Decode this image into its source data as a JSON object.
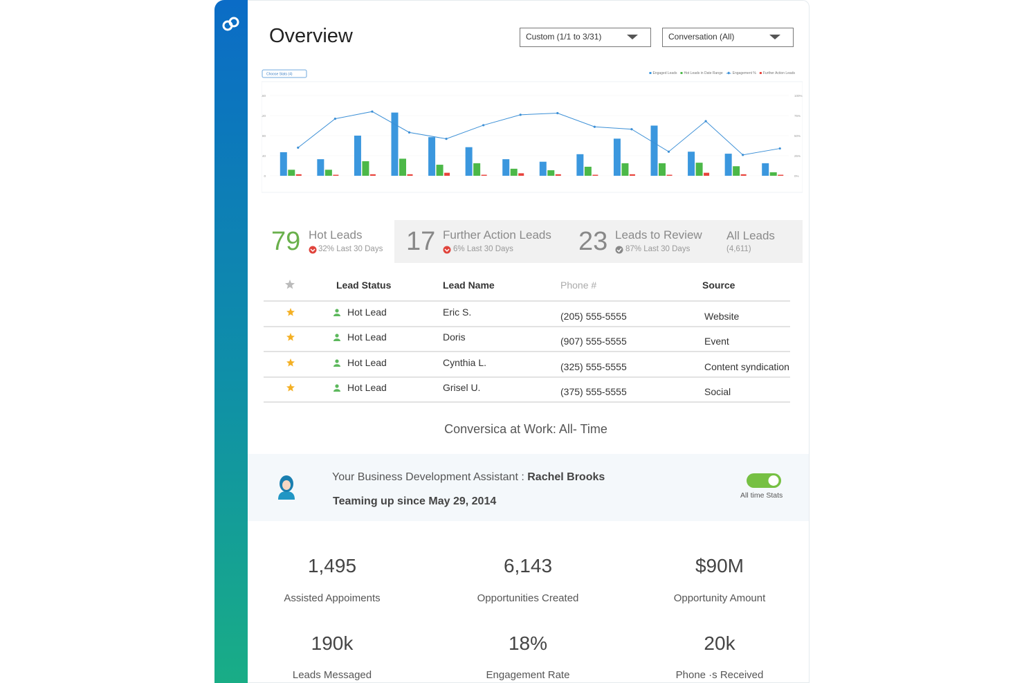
{
  "header": {
    "title": "Overview"
  },
  "filters": [
    "Custom (1/1 to 3/31)",
    "Conversation (All)"
  ],
  "chart_data": {
    "type": "bar",
    "button": "Choose Stats (4)",
    "categories": [
      null,
      null,
      null,
      null,
      null,
      null,
      null,
      null,
      null,
      null,
      null,
      null,
      null,
      null
    ],
    "series": [
      {
        "name": "Engaged Leads",
        "color": "#3b97de",
        "values": [
          47,
          33,
          80,
          126,
          77,
          57,
          33,
          28,
          43,
          74,
          100,
          48,
          44,
          25
        ]
      },
      {
        "name": "Hot Leads in Date Range",
        "color": "#4cb848",
        "values": [
          12,
          12,
          29,
          34,
          22,
          25,
          14,
          11,
          18,
          25,
          25,
          26,
          19,
          7
        ]
      },
      {
        "name": "Engagement %",
        "color": "#3b8fd6",
        "type": "line",
        "axis": "y2",
        "values": [
          35,
          71,
          80,
          54,
          46,
          63,
          76,
          78,
          61,
          58,
          30,
          68,
          26,
          34
        ]
      },
      {
        "name": "Further Action Leads",
        "color": "#e8433c",
        "values": [
          3,
          2,
          3,
          3,
          6,
          2,
          5,
          3,
          2,
          3,
          2,
          6,
          3,
          2
        ]
      }
    ],
    "ylim": [
      0,
      160
    ],
    "yticks": [
      0,
      40,
      80,
      120,
      160
    ],
    "y2lim": [
      0,
      100
    ],
    "y2ticks": [
      {
        "value": 0,
        "label": "0%"
      },
      {
        "value": 25,
        "label": "25%"
      },
      {
        "value": 50,
        "label": "50%"
      },
      {
        "value": 75,
        "label": "75%"
      },
      {
        "value": 100,
        "label": "100%"
      }
    ],
    "grid": true
  },
  "lead_tabs": [
    {
      "count": "79",
      "label": "Hot Leads",
      "change": "32% Last 30 Days"
    },
    {
      "count": "17",
      "label": "Further Action Leads",
      "change": "6% Last 30 Days"
    },
    {
      "count": "23",
      "label": "Leads to Review",
      "change": "87% Last 30 Days"
    },
    {
      "label": "All Leads",
      "total": "(4,611)"
    }
  ],
  "table": {
    "columns": [
      "Lead Status",
      "Lead Name",
      "Phone #",
      "Source"
    ],
    "rows": [
      [
        "Hot Lead",
        "Eric S.",
        "(205) 555-5555",
        "Website"
      ],
      [
        "Hot Lead",
        "Doris",
        "(907) 555-5555",
        "Event"
      ],
      [
        "Hot Lead",
        "Cynthia L.",
        "(325) 555-5555",
        "Content syndication"
      ],
      [
        "Hot Lead",
        "Grisel U.",
        "(375) 555-5555",
        "Social"
      ]
    ]
  },
  "section_title": "Conversica at Work: All- Time",
  "assistant": {
    "intro": "Your Business Development Assistant :",
    "name": "Rachel Brooks",
    "since": "Teaming up since May 29, 2014",
    "toggle_label": "All time Stats"
  },
  "metrics": [
    {
      "value": "1,495",
      "label": "Assisted Appoiments"
    },
    {
      "value": "6,143",
      "label": "Opportunities Created"
    },
    {
      "value": "$90M",
      "label": "Opportunity Amount"
    },
    {
      "value": "190k",
      "label": "Leads Messaged"
    },
    {
      "value": "18%",
      "label": "Engagement Rate"
    },
    {
      "value": "20k",
      "label": "Phone ·s Received"
    }
  ]
}
